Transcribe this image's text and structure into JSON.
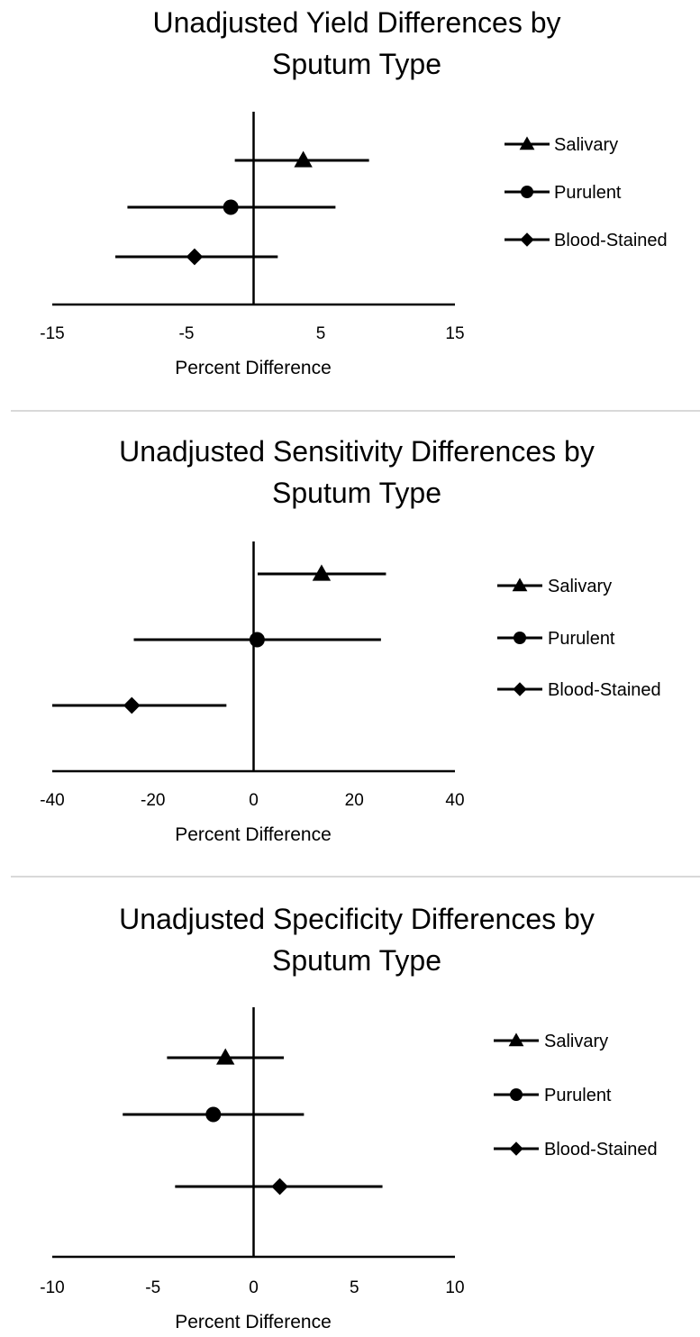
{
  "chart_data": [
    {
      "type": "scatter",
      "title_lines": [
        "Unadjusted Yield Differences by",
        "Sputum Type"
      ],
      "xlabel": "Percent Difference",
      "xlim": [
        -15,
        15
      ],
      "xticks": [
        -15,
        -5,
        5,
        15
      ],
      "xtick_labels": [
        "-15",
        "-5",
        "5",
        "15"
      ],
      "series": [
        {
          "name": "Salivary",
          "marker": "triangle",
          "x": 3.7,
          "lower": -1.4,
          "upper": 8.6
        },
        {
          "name": "Purulent",
          "marker": "circle",
          "x": -1.7,
          "lower": -9.4,
          "upper": 6.1
        },
        {
          "name": "Blood-Stained",
          "marker": "diamond",
          "x": -4.4,
          "lower": -10.3,
          "upper": 1.8
        }
      ],
      "legend_position": "right"
    },
    {
      "type": "scatter",
      "title_lines": [
        "Unadjusted Sensitivity Differences by",
        "Sputum Type"
      ],
      "xlabel": "Percent Difference",
      "xlim": [
        -40,
        40
      ],
      "xticks": [
        -40,
        -20,
        0,
        20,
        40
      ],
      "xtick_labels": [
        "-40",
        "-20",
        "0",
        "20",
        "40"
      ],
      "series": [
        {
          "name": "Salivary",
          "marker": "triangle",
          "x": 13.5,
          "lower": 0.8,
          "upper": 26.3
        },
        {
          "name": "Purulent",
          "marker": "circle",
          "x": 0.7,
          "lower": -23.8,
          "upper": 25.3
        },
        {
          "name": "Blood-Stained",
          "marker": "diamond",
          "x": -24.2,
          "lower": -40,
          "upper": -5.4
        }
      ],
      "legend_position": "right"
    },
    {
      "type": "scatter",
      "title_lines": [
        "Unadjusted Specificity Differences by",
        "Sputum Type"
      ],
      "xlabel": "Percent Difference",
      "xlim": [
        -10,
        10
      ],
      "xticks": [
        -10,
        -5,
        0,
        5,
        10
      ],
      "xtick_labels": [
        "-10",
        "-5",
        "0",
        "5",
        "10"
      ],
      "series": [
        {
          "name": "Salivary",
          "marker": "triangle",
          "x": -1.4,
          "lower": -4.3,
          "upper": 1.5
        },
        {
          "name": "Purulent",
          "marker": "circle",
          "x": -2.0,
          "lower": -6.5,
          "upper": 2.5
        },
        {
          "name": "Blood-Stained",
          "marker": "diamond",
          "x": 1.3,
          "lower": -3.9,
          "upper": 6.4
        }
      ],
      "legend_position": "right"
    }
  ]
}
